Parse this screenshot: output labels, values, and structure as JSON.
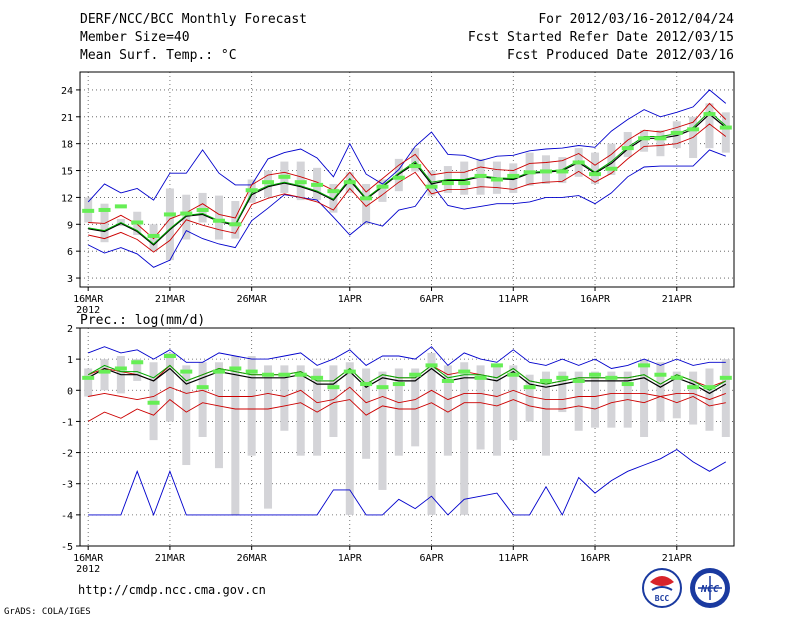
{
  "header": {
    "title": "DERF/NCC/BCC Monthly Forecast",
    "member_size": "Member Size=40",
    "variable": "Mean Surf. Temp.: °C",
    "period": "For 2012/03/16-2012/04/24",
    "started": "Fcst Started Refer Date 2012/03/15",
    "produced": "Fcst Produced Date 2012/03/16"
  },
  "footer": {
    "url": "http://cmdp.ncc.cma.gov.cn",
    "credit": "GrADS: COLA/IGES",
    "logo_bcc": "BCC",
    "logo_ncc": "NCC"
  },
  "x_axis": {
    "labels": [
      "16MAR",
      "21MAR",
      "26MAR",
      "1APR",
      "6APR",
      "11APR",
      "16APR",
      "21APR"
    ],
    "label_days": [
      1,
      6,
      11,
      17,
      22,
      27,
      32,
      37
    ],
    "year": "2012",
    "days": 40
  },
  "colors": {
    "envelope": "#0000cc",
    "spread": "#cc0000",
    "mean": "#000000",
    "median": "#00aa00",
    "marker": "#66ee55",
    "box": "#d4d4d8"
  },
  "chart_data": [
    {
      "type": "line",
      "title": "Mean Surf. Temp.: °C",
      "xlabel": "",
      "ylabel": "",
      "ylim": [
        2,
        26
      ],
      "yticks": [
        "3",
        "6",
        "9",
        "12",
        "15",
        "18",
        "21",
        "24"
      ],
      "grid": true,
      "series": [
        {
          "name": "max",
          "values": [
            6.7,
            5.8,
            6.4,
            5.7,
            4.2,
            5.0,
            8.3,
            7.4,
            6.8,
            6.4,
            9.4,
            10.8,
            12.3,
            12.0,
            11.7,
            9.8,
            7.8,
            9.3,
            8.8,
            10.6,
            11.0,
            13.5,
            11.1,
            10.7,
            11.0,
            11.3,
            11.3,
            11.5,
            12.0,
            12.0,
            12.2,
            11.3,
            12.5,
            14.3,
            15.4,
            15.5,
            15.5,
            15.5,
            17.3,
            16.6
          ]
        },
        {
          "name": "min",
          "values": [
            11.5,
            13.5,
            12.5,
            13.0,
            11.7,
            14.7,
            14.7,
            17.3,
            14.7,
            13.4,
            13.4,
            16.3,
            17.0,
            17.4,
            16.4,
            14.3,
            18.0,
            14.6,
            13.5,
            15.1,
            17.7,
            19.3,
            16.8,
            16.7,
            16.1,
            16.6,
            16.7,
            17.2,
            17.4,
            17.5,
            17.8,
            17.6,
            19.4,
            20.7,
            21.8,
            21.0,
            21.5,
            22.1,
            24.0,
            22.5
          ]
        },
        {
          "name": "p_low",
          "values": [
            7.8,
            7.4,
            8.1,
            7.3,
            5.9,
            7.2,
            9.5,
            8.9,
            8.4,
            8.0,
            11.2,
            11.9,
            12.4,
            12.0,
            11.5,
            10.6,
            13.0,
            11.0,
            12.3,
            13.7,
            14.8,
            12.4,
            12.9,
            12.9,
            13.2,
            13.1,
            12.9,
            13.5,
            13.7,
            13.8,
            14.9,
            13.7,
            14.7,
            16.3,
            17.7,
            17.8,
            18.0,
            18.7,
            20.2,
            18.8
          ]
        },
        {
          "name": "p_high",
          "values": [
            9.2,
            9.1,
            10.0,
            9.0,
            7.4,
            9.6,
            10.3,
            11.3,
            10.1,
            9.7,
            13.4,
            14.5,
            14.8,
            14.3,
            13.7,
            12.8,
            14.8,
            12.6,
            14.1,
            15.6,
            16.8,
            14.5,
            14.8,
            14.8,
            15.4,
            15.1,
            15.0,
            15.8,
            15.9,
            16.1,
            16.9,
            15.6,
            16.8,
            18.4,
            19.5,
            19.3,
            19.8,
            20.4,
            22.5,
            20.7
          ]
        },
        {
          "name": "mean",
          "values": [
            8.5,
            8.2,
            9.1,
            8.2,
            6.7,
            8.4,
            9.9,
            10.1,
            9.3,
            8.9,
            12.3,
            13.2,
            13.6,
            13.2,
            12.6,
            11.7,
            13.9,
            11.8,
            13.2,
            14.6,
            15.8,
            13.5,
            13.9,
            13.9,
            14.3,
            14.1,
            14.0,
            14.7,
            14.8,
            15.0,
            15.9,
            14.7,
            15.8,
            17.4,
            18.6,
            18.6,
            18.9,
            19.6,
            21.3,
            19.8
          ]
        },
        {
          "name": "median",
          "values": [
            8.6,
            8.3,
            9.2,
            8.3,
            6.8,
            8.5,
            10.0,
            10.2,
            9.4,
            9.0,
            12.5,
            13.3,
            13.7,
            13.3,
            12.7,
            11.8,
            14.1,
            11.9,
            13.3,
            14.7,
            16.0,
            13.7,
            14.0,
            14.0,
            14.4,
            14.2,
            14.1,
            14.8,
            14.9,
            15.1,
            16.1,
            14.8,
            16.0,
            17.6,
            18.8,
            18.8,
            19.1,
            19.8,
            21.6,
            20.0
          ]
        }
      ],
      "markers": [
        10.5,
        10.6,
        11.0,
        9.2,
        7.7,
        10.1,
        10.2,
        10.6,
        9.4,
        9.0,
        12.8,
        13.7,
        14.3,
        13.7,
        13.4,
        12.7,
        13.7,
        11.9,
        13.2,
        14.2,
        15.5,
        13.2,
        13.6,
        13.6,
        14.4,
        14.0,
        14.4,
        14.8,
        14.9,
        14.9,
        15.9,
        14.6,
        15.2,
        17.5,
        18.6,
        18.6,
        19.2,
        19.6,
        21.3,
        19.8
      ],
      "boxes": {
        "low": [
          9.2,
          7.0,
          8.8,
          7.8,
          6.0,
          5.0,
          7.3,
          9.2,
          7.3,
          7.4,
          11.4,
          12.0,
          12.5,
          11.7,
          11.7,
          10.3,
          12.5,
          9.0,
          11.5,
          12.7,
          14.9,
          12.2,
          12.5,
          12.3,
          12.3,
          12.4,
          12.5,
          13.3,
          13.5,
          13.6,
          14.3,
          13.5,
          14.5,
          16.5,
          17.1,
          16.6,
          17.5,
          16.4,
          17.5,
          17.0
        ],
        "high": [
          12.0,
          11.3,
          9.6,
          10.4,
          9.0,
          13.0,
          12.3,
          12.5,
          12.2,
          11.6,
          14.0,
          15.0,
          16.0,
          16.0,
          15.3,
          13.5,
          14.8,
          13.5,
          14.0,
          16.3,
          17.5,
          15.0,
          15.5,
          16.0,
          16.3,
          16.0,
          15.8,
          17.0,
          16.7,
          16.5,
          17.5,
          17.0,
          18.0,
          19.3,
          19.5,
          19.5,
          20.5,
          21.0,
          22.5,
          21.5
        ]
      }
    },
    {
      "type": "line",
      "title": "Prec.: log(mm/d)",
      "xlabel": "",
      "ylabel": "",
      "ylim": [
        -5,
        2
      ],
      "yticks": [
        "-5",
        "-4",
        "-3",
        "-2",
        "-1",
        "0",
        "1",
        "2"
      ],
      "grid": true,
      "series": [
        {
          "name": "max",
          "values": [
            -4.0,
            -4.0,
            -4.0,
            -2.6,
            -4.0,
            -2.6,
            -4.0,
            -4.0,
            -4.0,
            -4.0,
            -4.0,
            -4.0,
            -4.0,
            -4.0,
            -4.0,
            -3.2,
            -3.2,
            -4.0,
            -4.0,
            -3.5,
            -3.8,
            -3.4,
            -4.0,
            -3.5,
            -3.4,
            -3.3,
            -4.0,
            -4.0,
            -3.1,
            -4.0,
            -2.8,
            -3.3,
            -2.9,
            -2.6,
            -2.4,
            -2.2,
            -1.9,
            -2.3,
            -2.6,
            -2.3
          ]
        },
        {
          "name": "min",
          "values": [
            1.2,
            1.4,
            1.2,
            1.3,
            1.0,
            1.3,
            0.9,
            0.9,
            1.2,
            1.1,
            1.0,
            1.0,
            1.1,
            1.2,
            0.8,
            1.0,
            1.3,
            0.8,
            1.1,
            1.1,
            1.0,
            1.4,
            0.8,
            1.2,
            1.0,
            0.9,
            1.3,
            0.9,
            0.8,
            1.0,
            0.8,
            1.0,
            0.7,
            0.8,
            1.0,
            0.8,
            1.0,
            0.8,
            0.9,
            0.9
          ]
        },
        {
          "name": "p_low",
          "values": [
            -1.0,
            -0.7,
            -0.9,
            -0.6,
            -0.8,
            -0.3,
            -0.7,
            -0.4,
            -0.5,
            -0.6,
            -0.6,
            -0.6,
            -0.5,
            -0.4,
            -0.7,
            -0.4,
            -0.3,
            -0.8,
            -0.5,
            -0.6,
            -0.6,
            -0.4,
            -0.7,
            -0.4,
            -0.4,
            -0.5,
            -0.3,
            -0.5,
            -0.6,
            -0.6,
            -0.5,
            -0.6,
            -0.4,
            -0.3,
            -0.4,
            -0.2,
            -0.4,
            -0.2,
            -0.5,
            -0.4
          ]
        },
        {
          "name": "p_high",
          "values": [
            0.5,
            0.7,
            0.6,
            0.5,
            0.3,
            0.8,
            0.3,
            0.5,
            0.7,
            0.6,
            0.5,
            0.5,
            0.5,
            0.6,
            0.3,
            0.3,
            0.7,
            0.2,
            0.5,
            0.4,
            0.4,
            0.8,
            0.5,
            0.6,
            0.5,
            0.4,
            0.7,
            0.3,
            0.2,
            0.3,
            0.4,
            0.4,
            0.4,
            0.4,
            0.5,
            0.2,
            0.5,
            0.3,
            0.1,
            0.3
          ]
        },
        {
          "name": "mean",
          "values": [
            0.4,
            0.7,
            0.5,
            0.5,
            0.3,
            0.7,
            0.2,
            0.4,
            0.6,
            0.5,
            0.4,
            0.4,
            0.4,
            0.5,
            0.2,
            0.2,
            0.6,
            0.1,
            0.4,
            0.3,
            0.3,
            0.7,
            0.3,
            0.4,
            0.4,
            0.3,
            0.6,
            0.2,
            0.1,
            0.2,
            0.3,
            0.3,
            0.3,
            0.3,
            0.4,
            0.1,
            0.4,
            0.2,
            -0.1,
            0.2
          ]
        },
        {
          "name": "median",
          "values": [
            0.5,
            0.8,
            0.6,
            0.6,
            0.4,
            0.8,
            0.3,
            0.5,
            0.7,
            0.6,
            0.5,
            0.5,
            0.5,
            0.6,
            0.3,
            0.3,
            0.7,
            0.2,
            0.5,
            0.4,
            0.4,
            0.8,
            0.4,
            0.5,
            0.5,
            0.4,
            0.7,
            0.3,
            0.2,
            0.3,
            0.4,
            0.4,
            0.4,
            0.4,
            0.5,
            0.2,
            0.5,
            0.3,
            0.0,
            0.3
          ]
        },
        {
          "name": "extra",
          "values": [
            -0.2,
            -0.1,
            -0.2,
            -0.3,
            -0.2,
            0.1,
            -0.1,
            0.0,
            -0.2,
            -0.2,
            -0.2,
            -0.1,
            -0.2,
            0.0,
            -0.4,
            -0.3,
            0.1,
            -0.4,
            -0.2,
            -0.4,
            -0.3,
            0.0,
            -0.3,
            -0.1,
            -0.1,
            -0.2,
            0.0,
            -0.2,
            -0.3,
            -0.3,
            -0.2,
            -0.2,
            -0.1,
            -0.1,
            -0.1,
            -0.2,
            -0.1,
            -0.1,
            -0.3,
            -0.1
          ]
        }
      ],
      "markers": [
        0.4,
        0.6,
        0.7,
        0.9,
        -0.4,
        1.1,
        0.6,
        0.1,
        0.6,
        0.7,
        0.6,
        0.5,
        0.5,
        0.5,
        0.4,
        0.1,
        0.6,
        0.2,
        0.1,
        0.2,
        0.5,
        0.8,
        0.3,
        0.6,
        0.4,
        0.8,
        0.5,
        0.1,
        0.3,
        0.4,
        0.3,
        0.5,
        0.4,
        0.2,
        0.8,
        0.5,
        0.4,
        0.1,
        0.1,
        0.4
      ],
      "boxes": {
        "low": [
          -0.2,
          0.0,
          -0.1,
          0.3,
          -1.6,
          -1.0,
          -2.4,
          -1.5,
          -2.5,
          -4.0,
          -2.1,
          -3.8,
          -1.3,
          -2.1,
          -2.1,
          -1.5,
          -4.0,
          -2.2,
          -3.2,
          -2.1,
          -1.8,
          -4.0,
          -2.1,
          -4.0,
          -1.9,
          -2.1,
          -1.6,
          -1.0,
          -2.1,
          -0.7,
          -1.3,
          -1.2,
          -1.2,
          -1.2,
          -1.5,
          -1.0,
          -0.9,
          -1.1,
          -1.3,
          -1.5
        ],
        "high": [
          0.7,
          1.0,
          1.1,
          1.0,
          0.9,
          1.2,
          0.8,
          0.9,
          0.9,
          1.1,
          1.1,
          0.8,
          0.8,
          0.8,
          0.7,
          0.8,
          0.9,
          0.7,
          0.6,
          0.7,
          0.7,
          1.2,
          0.8,
          0.9,
          0.8,
          0.8,
          0.8,
          0.5,
          0.6,
          0.6,
          0.6,
          0.6,
          0.6,
          0.6,
          1.0,
          0.9,
          0.6,
          0.6,
          0.7,
          1.0
        ]
      }
    }
  ]
}
